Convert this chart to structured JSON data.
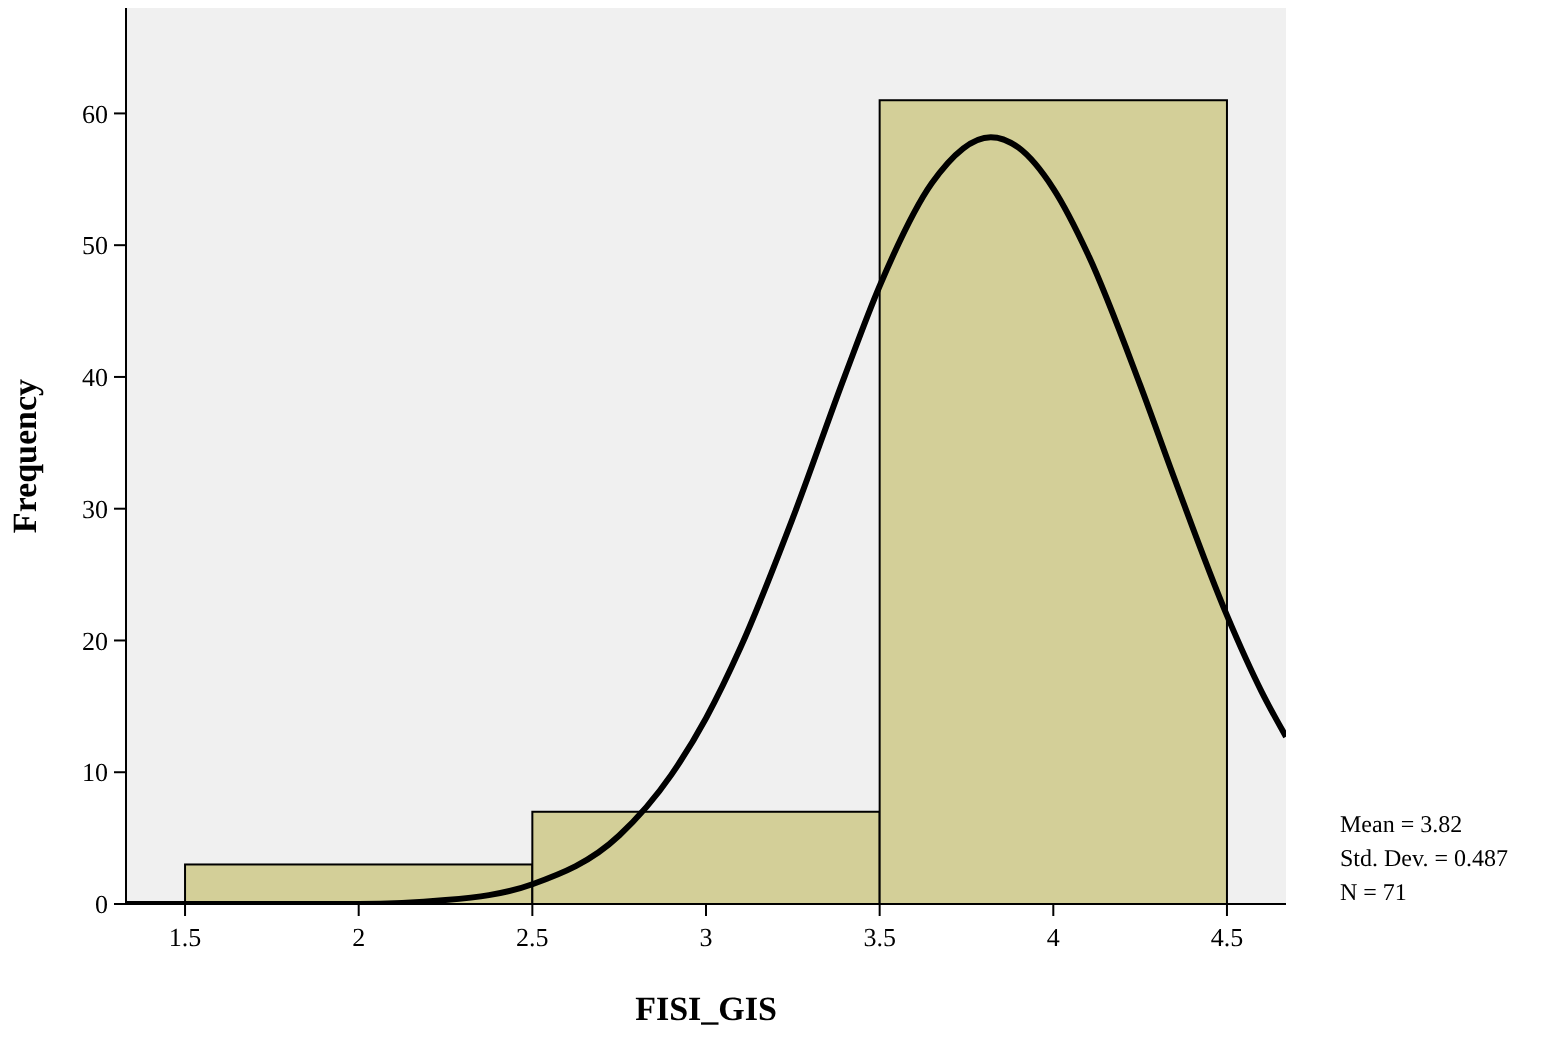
{
  "chart_data": {
    "type": "histogram",
    "xlabel": "FISI_GIS",
    "ylabel": "Frequency",
    "bins": [
      1.5,
      2.5,
      3.5,
      4.5
    ],
    "values": [
      3,
      7,
      61
    ],
    "color": "#d3cf98",
    "series": [
      {
        "type": "line",
        "color": "#000000",
        "x": [
          1.33,
          1.5,
          2.0,
          2.25,
          2.5,
          2.75,
          2.9,
          3.0,
          3.1,
          3.25,
          3.4,
          3.5,
          3.65,
          3.82,
          3.9,
          4.0,
          4.1,
          4.25,
          4.35,
          4.5,
          4.6,
          4.67
        ],
        "values": [
          0,
          0,
          0,
          0.3,
          1.5,
          5.2,
          9.8,
          14.1,
          19.5,
          29.3,
          40.1,
          46.9,
          54.7,
          58.2,
          57.4,
          54.3,
          49.3,
          39.4,
          32.2,
          21.9,
          16.1,
          12.7
        ]
      }
    ],
    "xlim": [
      1.33,
      4.67
    ],
    "ylim": [
      0,
      68
    ],
    "xticks": [
      1.5,
      2,
      2.5,
      3,
      3.5,
      4,
      4.5
    ],
    "yticks": [
      0,
      10,
      20,
      30,
      40,
      50,
      60
    ],
    "grid": false,
    "marker": "none",
    "line_style": "solid",
    "annotations": [
      "Mean = 3.82",
      "Std. Dev. = 0.487",
      "N = 71"
    ]
  }
}
